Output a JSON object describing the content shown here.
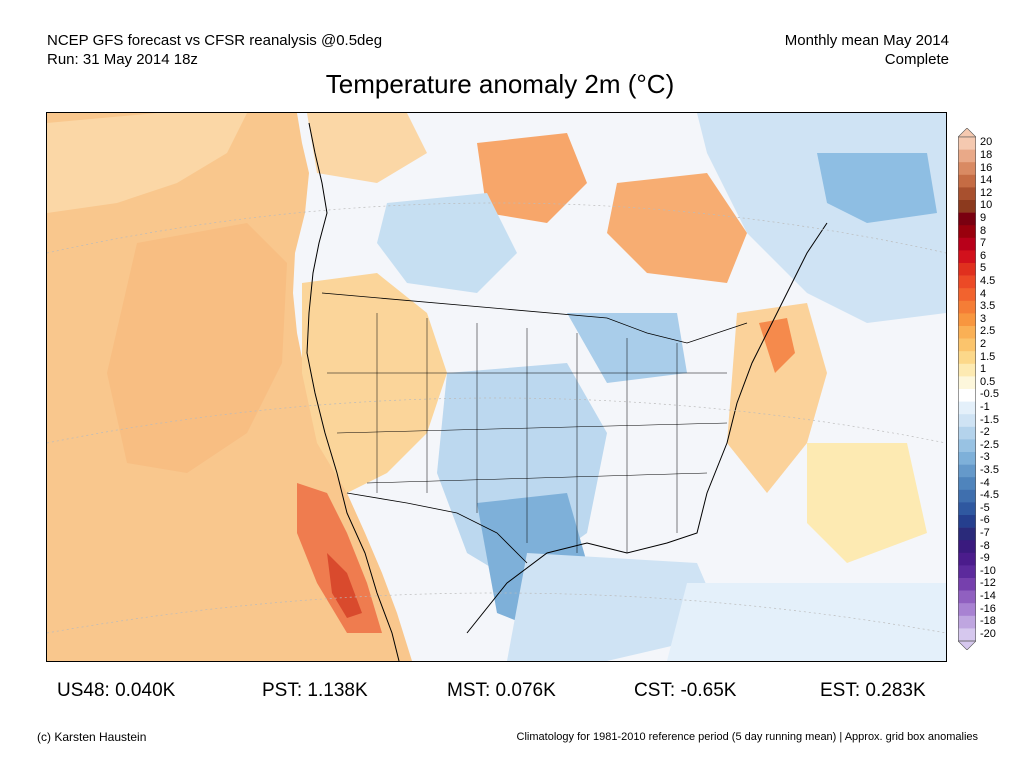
{
  "header": {
    "line1_left": "NCEP GFS forecast vs CFSR reanalysis @0.5deg",
    "line2_left": "Run: 31 May 2014 18z",
    "line1_right": "Monthly mean May 2014",
    "line2_right": "Complete"
  },
  "title": "Temperature anomaly 2m (°C)",
  "colorbar": {
    "labels": [
      "20",
      "18",
      "16",
      "14",
      "12",
      "10",
      "9",
      "8",
      "7",
      "6",
      "5",
      "4.5",
      "4",
      "3.5",
      "3",
      "2.5",
      "2",
      "1.5",
      "1",
      "0.5",
      "-0.5",
      "-1",
      "-1.5",
      "-2",
      "-2.5",
      "-3",
      "-3.5",
      "-4",
      "-4.5",
      "-5",
      "-6",
      "-7",
      "-8",
      "-9",
      "-10",
      "-12",
      "-14",
      "-16",
      "-18",
      "-20"
    ],
    "colors": [
      "#f5c9b0",
      "#e9a988",
      "#d98a63",
      "#c56c44",
      "#a8502e",
      "#8c3a1e",
      "#7a0010",
      "#99000d",
      "#b8001a",
      "#d2111c",
      "#e0301e",
      "#ec4a26",
      "#f2632e",
      "#f57d36",
      "#f8963f",
      "#fab055",
      "#fbc46c",
      "#fcd88a",
      "#fdeab2",
      "#fdf7dc",
      "#ffffff",
      "#e4f0fa",
      "#cfe3f4",
      "#b4d3ec",
      "#98c2e3",
      "#7eb0d9",
      "#6599ca",
      "#4f84bc",
      "#3f6fae",
      "#2f58a0",
      "#253f8e",
      "#2a2a7a",
      "#3a1a7e",
      "#4b1c8c",
      "#5c2a9c",
      "#7640ad",
      "#9060c0",
      "#a882d2",
      "#bfa6e0",
      "#d6c8ee"
    ]
  },
  "map": {
    "ocean_anomaly_color": "#f9c78d",
    "land_neutral_color": "#f4f6fa",
    "coastline_color": "#000000",
    "border_color": "#000000"
  },
  "stats": [
    {
      "label": "US48: 0.040K"
    },
    {
      "label": "PST: 1.138K"
    },
    {
      "label": "MST: 0.076K"
    },
    {
      "label": "CST: -0.65K"
    },
    {
      "label": "EST: 0.283K"
    }
  ],
  "footer": {
    "left": "(c) Karsten Haustein",
    "right": "Climatology for 1981-2010 reference period (5 day running mean) | Approx. grid box anomalies"
  }
}
